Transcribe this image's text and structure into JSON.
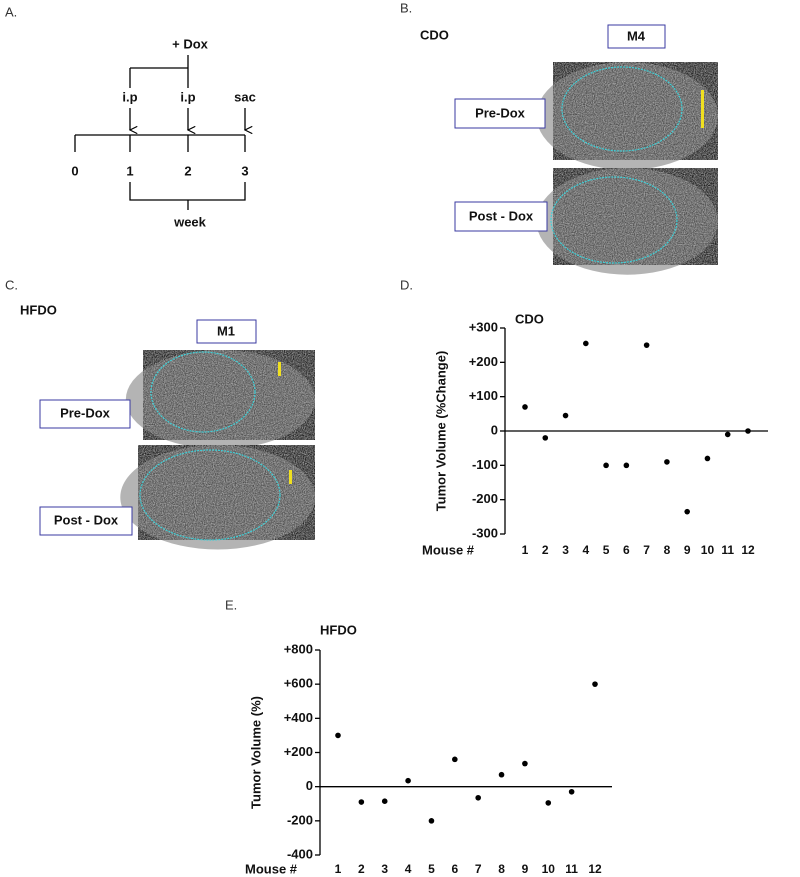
{
  "panel_a": {
    "label": "A.",
    "dox": "+ Dox",
    "arrows": [
      "i.p",
      "i.p",
      "sac"
    ],
    "timeline": [
      "0",
      "1",
      "2",
      "3"
    ],
    "unit": "week"
  },
  "panel_b": {
    "label": "B.",
    "group": "CDO",
    "mouse": "M4",
    "pre": "Pre-Dox",
    "post": "Post - Dox"
  },
  "panel_c": {
    "label": "C.",
    "group": "HFDO",
    "mouse": "M1",
    "pre": "Pre-Dox",
    "post": "Post - Dox"
  },
  "chart_data": [
    {
      "type": "scatter",
      "panel": "D.",
      "title": "CDO",
      "ylabel": "Tumor Volume (%Change)",
      "xlabel": "Mouse #",
      "categories": [
        "1",
        "2",
        "3",
        "4",
        "5",
        "6",
        "7",
        "8",
        "9",
        "10",
        "11",
        "12"
      ],
      "values": [
        70,
        -20,
        45,
        255,
        -100,
        -100,
        250,
        -90,
        -235,
        -80,
        -10,
        0
      ],
      "color": "#000000",
      "ylim": [
        -300,
        300
      ],
      "yticks": [
        {
          "value": 300,
          "label": "+300"
        },
        {
          "value": 200,
          "label": "+200"
        },
        {
          "value": 100,
          "label": "+100"
        },
        0,
        -100,
        -200,
        -300
      ]
    },
    {
      "type": "scatter",
      "panel": "E.",
      "title": "HFDO",
      "ylabel": "Tumor Volume (%)",
      "xlabel": "Mouse #",
      "categories": [
        "1",
        "2",
        "3",
        "4",
        "5",
        "6",
        "7",
        "8",
        "9",
        "10",
        "11",
        "12"
      ],
      "values": [
        300,
        -90,
        -85,
        35,
        -200,
        160,
        -65,
        70,
        135,
        -95,
        -30,
        600
      ],
      "color": "#000000",
      "ylim": [
        -400,
        800
      ],
      "yticks": [
        {
          "value": 800,
          "label": "+800"
        },
        {
          "value": 600,
          "label": "+600"
        },
        {
          "value": 400,
          "label": "+400"
        },
        {
          "value": 200,
          "label": "+200"
        },
        0,
        -200,
        -400
      ]
    }
  ]
}
